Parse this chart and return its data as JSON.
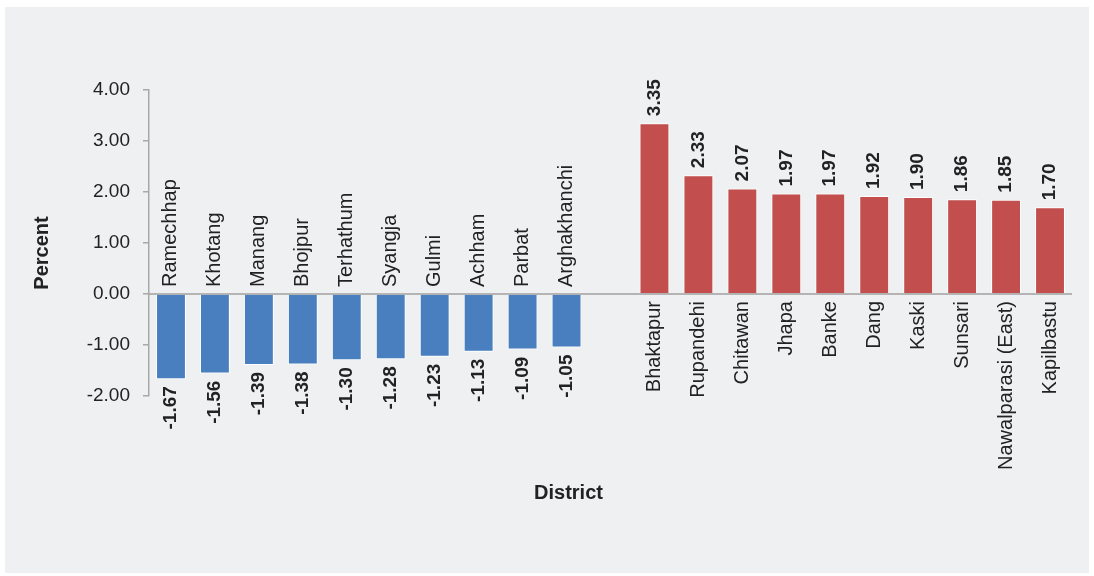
{
  "chart_data": {
    "type": "bar",
    "xlabel": "District",
    "ylabel": "Percent",
    "categories": [
      "Ramechhap",
      "Khotang",
      "Manang",
      "Bhojpur",
      "Terhathum",
      "Syangja",
      "Gulmi",
      "Achham",
      "Parbat",
      "Arghakhanchi",
      null,
      "Bhaktapur",
      "Rupandehi",
      "Chitawan",
      "Jhapa",
      "Banke",
      "Dang",
      "Kaski",
      "Sunsari",
      "Nawalparasi (East)",
      "Kapilbastu"
    ],
    "values": [
      -1.67,
      -1.56,
      -1.39,
      -1.38,
      -1.3,
      -1.28,
      -1.23,
      -1.13,
      -1.09,
      -1.05,
      null,
      3.35,
      2.33,
      2.07,
      1.97,
      1.97,
      1.92,
      1.9,
      1.86,
      1.85,
      1.7
    ],
    "colors": [
      "#4a7fbf",
      "#4a7fbf",
      "#4a7fbf",
      "#4a7fbf",
      "#4a7fbf",
      "#4a7fbf",
      "#4a7fbf",
      "#4a7fbf",
      "#4a7fbf",
      "#4a7fbf",
      "#4a7fbf",
      "#c24f4d",
      "#c24f4d",
      "#c24f4d",
      "#c24f4d",
      "#c24f4d",
      "#c24f4d",
      "#c24f4d",
      "#c24f4d",
      "#c24f4d",
      "#c24f4d"
    ],
    "value_labels": [
      "-1.67",
      "-1.56",
      "-1.39",
      "-1.38",
      "-1.30",
      "-1.28",
      "-1.23",
      "-1.13",
      "-1.09",
      "-1.05",
      null,
      "3.35",
      "2.33",
      "2.07",
      "1.97",
      "1.97",
      "1.92",
      "1.90",
      "1.86",
      "1.85",
      "1.70"
    ],
    "ylim": [
      -2,
      4
    ],
    "yticks": [
      {
        "value": -2,
        "label": "-2.00"
      },
      {
        "value": -1,
        "label": "-1.00"
      },
      {
        "value": 0,
        "label": "0.00"
      },
      {
        "value": 1,
        "label": "1.00"
      },
      {
        "value": 2,
        "label": "2.00"
      },
      {
        "value": 3,
        "label": "3.00"
      },
      {
        "value": 4,
        "label": "4.00"
      }
    ]
  }
}
